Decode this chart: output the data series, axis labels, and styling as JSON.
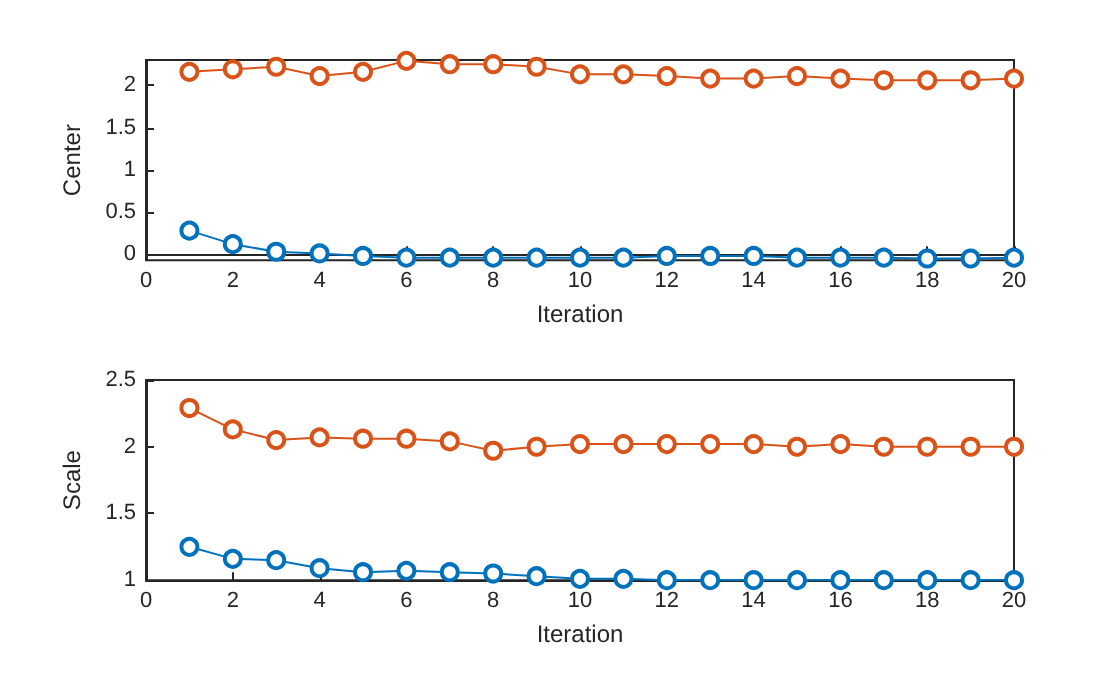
{
  "chart_data": [
    {
      "type": "line",
      "xlabel": "Iteration",
      "ylabel": "Center",
      "x": [
        1,
        2,
        3,
        4,
        5,
        6,
        7,
        8,
        9,
        10,
        11,
        12,
        13,
        14,
        15,
        16,
        17,
        18,
        19,
        20
      ],
      "xlim": [
        0,
        20
      ],
      "xticks": [
        0,
        2,
        4,
        6,
        8,
        10,
        12,
        14,
        16,
        18,
        20
      ],
      "ylim": [
        -0.07,
        2.3
      ],
      "yticks": [
        0,
        0.5,
        1,
        1.5,
        2
      ],
      "grid": false,
      "marker": "circle",
      "line_style": "solid",
      "series": [
        {
          "color": "#0072bd",
          "values": [
            0.28,
            0.12,
            0.03,
            0.01,
            -0.02,
            -0.04,
            -0.04,
            -0.04,
            -0.04,
            -0.04,
            -0.04,
            -0.02,
            -0.02,
            -0.02,
            -0.04,
            -0.04,
            -0.04,
            -0.05,
            -0.05,
            -0.04
          ]
        },
        {
          "color": "#d95319",
          "values": [
            2.16,
            2.19,
            2.22,
            2.11,
            2.16,
            2.29,
            2.25,
            2.25,
            2.22,
            2.13,
            2.13,
            2.11,
            2.08,
            2.08,
            2.11,
            2.08,
            2.06,
            2.06,
            2.06,
            2.08
          ]
        }
      ]
    },
    {
      "type": "line",
      "xlabel": "Iteration",
      "ylabel": "Scale",
      "x": [
        1,
        2,
        3,
        4,
        5,
        6,
        7,
        8,
        9,
        10,
        11,
        12,
        13,
        14,
        15,
        16,
        17,
        18,
        19,
        20
      ],
      "xlim": [
        0,
        20
      ],
      "xticks": [
        0,
        2,
        4,
        6,
        8,
        10,
        12,
        14,
        16,
        18,
        20
      ],
      "ylim": [
        1,
        2.5
      ],
      "yticks": [
        1,
        1.5,
        2,
        2.5
      ],
      "grid": false,
      "marker": "circle",
      "line_style": "solid",
      "series": [
        {
          "color": "#0072bd",
          "values": [
            1.25,
            1.16,
            1.15,
            1.09,
            1.06,
            1.07,
            1.06,
            1.05,
            1.03,
            1.01,
            1.01,
            1.0,
            1.0,
            1.0,
            1.0,
            1.0,
            1.0,
            1.0,
            1.0,
            1.0
          ]
        },
        {
          "color": "#d95319",
          "values": [
            2.29,
            2.13,
            2.05,
            2.07,
            2.06,
            2.06,
            2.04,
            1.97,
            2.0,
            2.02,
            2.02,
            2.02,
            2.02,
            2.02,
            2.0,
            2.02,
            2.0,
            2.0,
            2.0,
            2.0
          ]
        }
      ]
    }
  ]
}
